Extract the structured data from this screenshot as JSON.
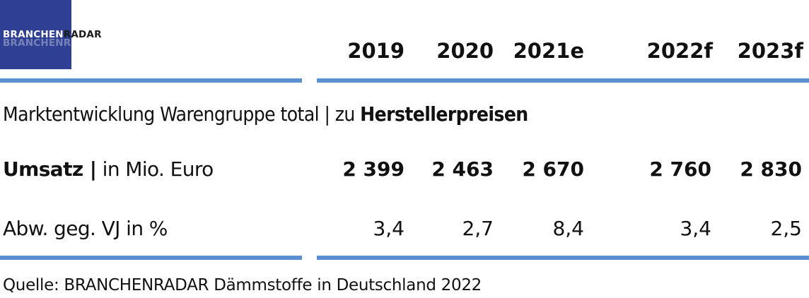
{
  "logo": {
    "text_highlight": "BRANCHEN",
    "text_rest": "RADAR",
    "mirror": "BRANCHENRADAR"
  },
  "columns": [
    "2019",
    "2020",
    "2021e",
    "2022f",
    "2023f"
  ],
  "caption": {
    "prefix": "Marktentwicklung Warengruppe total | zu ",
    "bold": "Herstellerpreisen"
  },
  "rows": [
    {
      "label_bold": "Umsatz |",
      "label_rest": " in Mio. Euro",
      "values": [
        "2 399",
        "2 463",
        "2 670",
        "2 760",
        "2 830"
      ]
    },
    {
      "label_bold": "",
      "label_rest": "Abw. geg. VJ in %",
      "values": [
        "3,4",
        "2,7",
        "8,4",
        "3,4",
        "2,5"
      ]
    }
  ],
  "source": "Quelle: BRANCHENRADAR Dämmstoffe in Deutschland 2022",
  "colors": {
    "logo_bg": "#2e3f94",
    "rule": "#5a8fd0",
    "text": "#111111"
  },
  "chart_data": {
    "type": "table",
    "title": "Marktentwicklung Warengruppe total | zu Herstellerpreisen",
    "columns": [
      "2019",
      "2020",
      "2021e",
      "2022f",
      "2023f"
    ],
    "series": [
      {
        "name": "Umsatz | in Mio. Euro",
        "values": [
          2399,
          2463,
          2670,
          2760,
          2830
        ]
      },
      {
        "name": "Abw. geg. VJ in %",
        "values": [
          3.4,
          2.7,
          8.4,
          3.4,
          2.5
        ]
      }
    ]
  }
}
